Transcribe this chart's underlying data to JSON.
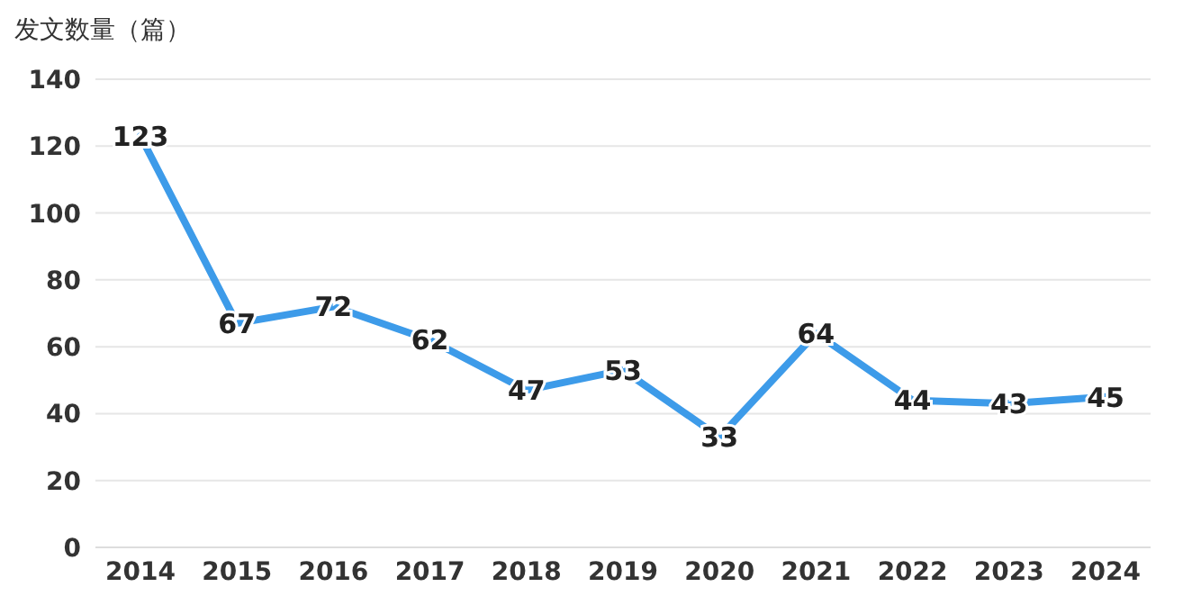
{
  "chart_data": {
    "type": "line",
    "ylabel": "发文数量（篇）",
    "categories": [
      "2014",
      "2015",
      "2016",
      "2017",
      "2018",
      "2019",
      "2020",
      "2021",
      "2022",
      "2023",
      "2024"
    ],
    "series": [
      {
        "color": "#3d9be9",
        "values": [
          123,
          67,
          72,
          62,
          47,
          53,
          33,
          64,
          44,
          43,
          45
        ]
      }
    ],
    "ylim": [
      0,
      140
    ],
    "yticks": [
      0,
      20,
      40,
      60,
      80,
      100,
      120,
      140
    ],
    "grid": "y",
    "marker": "none",
    "line_style": "solid",
    "data_labels": true
  }
}
